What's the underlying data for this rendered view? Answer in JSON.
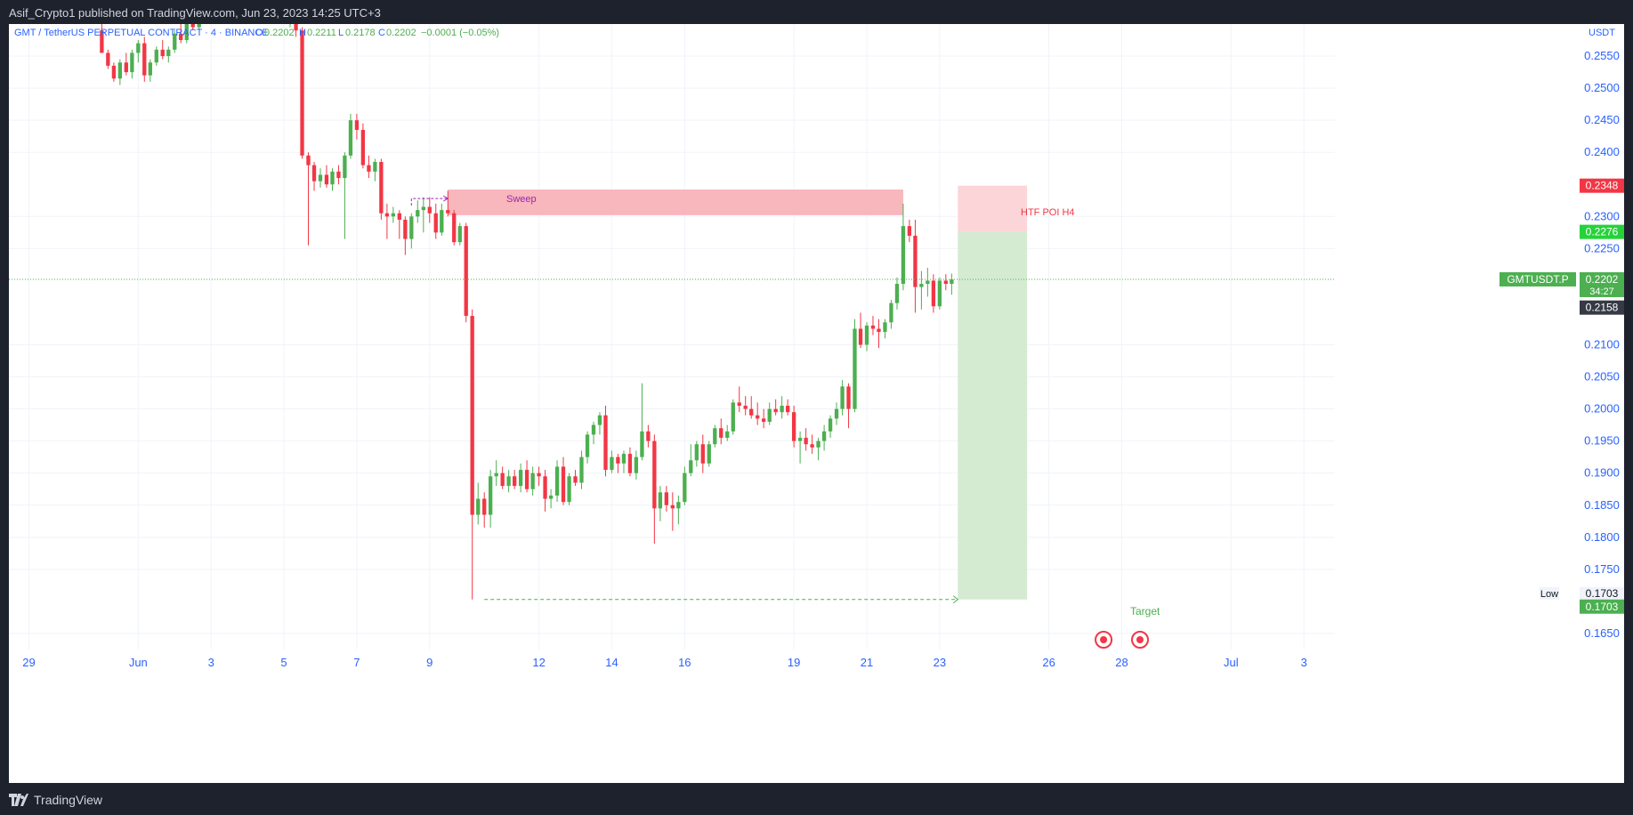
{
  "header": {
    "publisher_line": "Asif_Crypto1 published on TradingView.com, Jun 23, 2023 14:25 UTC+3"
  },
  "footer": {
    "brand": "TradingView"
  },
  "legend": {
    "symbol": "GMT / TetherUS PERPETUAL CONTRACT · 4 · BINANCE",
    "o_label": "O",
    "o_value": "0.2202",
    "h_label": "H",
    "h_value": "0.2211",
    "l_label": "L",
    "l_value": "0.2178",
    "c_label": "C",
    "c_value": "0.2202",
    "change": "−0.0001 (−0.05%)"
  },
  "colors": {
    "up": "#4caf50",
    "down": "#f23645",
    "axis_text": "#2962ff",
    "grid": "#f0f3fa",
    "poi_zone": "#f8b6bd",
    "stop_zone": "#fcd5d9",
    "target_zone": "#d4ebd2",
    "label_red": "#f23645",
    "label_green": "#22ab94",
    "label_bright_green": "#26d23a",
    "label_dark": "#363a45",
    "sweep": "#9c27b0"
  },
  "chart_data": {
    "type": "candlestick",
    "timeframe": "4",
    "currency_label": "USDT",
    "y_ticks": [
      "0.2550",
      "0.2500",
      "0.2450",
      "0.2400",
      "0.2300",
      "0.2250",
      "0.2100",
      "0.2050",
      "0.2000",
      "0.1950",
      "0.1900",
      "0.1850",
      "0.1800",
      "0.1750",
      "0.1650"
    ],
    "y_range": [
      0.1625,
      0.26
    ],
    "x_ticks": [
      {
        "label": "29",
        "day": -2
      },
      {
        "label": "Jun",
        "day": 1
      },
      {
        "label": "3",
        "day": 3
      },
      {
        "label": "5",
        "day": 5
      },
      {
        "label": "7",
        "day": 7
      },
      {
        "label": "9",
        "day": 9
      },
      {
        "label": "12",
        "day": 12
      },
      {
        "label": "14",
        "day": 14
      },
      {
        "label": "16",
        "day": 16
      },
      {
        "label": "19",
        "day": 19
      },
      {
        "label": "21",
        "day": 21
      },
      {
        "label": "23",
        "day": 23
      },
      {
        "label": "26",
        "day": 26
      },
      {
        "label": "28",
        "day": 28
      },
      {
        "label": "Jul",
        "day": 31
      },
      {
        "label": "3",
        "day": 33
      }
    ],
    "x_range_days": [
      -2.55,
      33.85
    ],
    "price_labels": [
      {
        "text": "0.2348",
        "price": 0.2348,
        "style": "red"
      },
      {
        "text": "0.2276",
        "price": 0.2276,
        "style": "bright_green"
      },
      {
        "text": "0.2202",
        "price": 0.2202,
        "style": "green",
        "symbol": "GMTUSDT.P",
        "countdown": "34:27"
      },
      {
        "text": "0.2158",
        "price": 0.2158,
        "style": "dark"
      },
      {
        "text": "0.1703",
        "price": 0.1703,
        "style": "plain",
        "prefix": "Low"
      },
      {
        "text": "0.1703",
        "price": 0.1703,
        "style": "green"
      }
    ],
    "current_price": 0.2202,
    "annotations": {
      "sweep_label": "Sweep",
      "poi_label": "HTF POI H4",
      "target_label": "Target",
      "poi_zone": {
        "from_day": 9.5,
        "to_day": 22.0,
        "top": 0.2342,
        "bottom": 0.2302
      },
      "trade": {
        "from_day": 23.5,
        "to_day": 25.4,
        "stop": 0.2348,
        "entry": 0.2276,
        "target": 0.1703
      },
      "low_line": {
        "from_day": 10.5,
        "to_day": 23.5,
        "price": 0.1703
      },
      "sweep_line": {
        "from_day": 8.5,
        "to_day": 9.5,
        "price": 0.2328
      }
    },
    "events": [
      {
        "day": 27.5
      },
      {
        "day": 28.5
      }
    ],
    "candles": [
      [
        0.0,
        0.259,
        0.261,
        0.256,
        0.2555
      ],
      [
        0.17,
        0.2555,
        0.256,
        0.253,
        0.2535
      ],
      [
        0.33,
        0.2535,
        0.254,
        0.251,
        0.2515
      ],
      [
        0.5,
        0.2515,
        0.2545,
        0.2505,
        0.254
      ],
      [
        0.67,
        0.254,
        0.2555,
        0.252,
        0.2525
      ],
      [
        0.83,
        0.2525,
        0.256,
        0.2515,
        0.2555
      ],
      [
        1.0,
        0.2555,
        0.2575,
        0.254,
        0.257
      ],
      [
        1.17,
        0.257,
        0.258,
        0.251,
        0.252
      ],
      [
        1.33,
        0.252,
        0.2545,
        0.251,
        0.254
      ],
      [
        1.5,
        0.254,
        0.2565,
        0.2535,
        0.256
      ],
      [
        1.67,
        0.256,
        0.2575,
        0.2545,
        0.255
      ],
      [
        1.83,
        0.255,
        0.2565,
        0.254,
        0.256
      ],
      [
        2.0,
        0.256,
        0.259,
        0.2555,
        0.2585
      ],
      [
        2.17,
        0.2585,
        0.26,
        0.257,
        0.2575
      ],
      [
        2.33,
        0.2575,
        0.261,
        0.257,
        0.2605
      ],
      [
        2.5,
        0.2605,
        0.2615,
        0.259,
        0.2595
      ],
      [
        2.67,
        0.2595,
        0.262,
        0.259,
        0.261
      ],
      [
        2.83,
        0.261,
        0.2625,
        0.26,
        0.2615
      ],
      [
        5.0,
        0.2615,
        0.2625,
        0.26,
        0.2605
      ],
      [
        5.17,
        0.2605,
        0.262,
        0.2595,
        0.261
      ],
      [
        5.33,
        0.261,
        0.262,
        0.258,
        0.259
      ],
      [
        5.5,
        0.259,
        0.2595,
        0.239,
        0.2395
      ],
      [
        5.67,
        0.2395,
        0.24,
        0.2255,
        0.238
      ],
      [
        5.83,
        0.238,
        0.2385,
        0.234,
        0.2355
      ],
      [
        6.0,
        0.2355,
        0.2375,
        0.2345,
        0.2365
      ],
      [
        6.17,
        0.2365,
        0.238,
        0.2345,
        0.235
      ],
      [
        6.33,
        0.235,
        0.2375,
        0.234,
        0.237
      ],
      [
        6.5,
        0.237,
        0.238,
        0.235,
        0.236
      ],
      [
        6.67,
        0.236,
        0.24,
        0.2265,
        0.2395
      ],
      [
        6.83,
        0.2395,
        0.246,
        0.239,
        0.245
      ],
      [
        7.0,
        0.245,
        0.246,
        0.242,
        0.2435
      ],
      [
        7.17,
        0.2435,
        0.2445,
        0.2375,
        0.238
      ],
      [
        7.33,
        0.238,
        0.2395,
        0.236,
        0.237
      ],
      [
        7.5,
        0.237,
        0.239,
        0.2355,
        0.2385
      ],
      [
        7.67,
        0.2385,
        0.239,
        0.2295,
        0.2305
      ],
      [
        7.83,
        0.2305,
        0.232,
        0.2265,
        0.23
      ],
      [
        8.0,
        0.23,
        0.2315,
        0.229,
        0.2305
      ],
      [
        8.17,
        0.2305,
        0.231,
        0.2265,
        0.2295
      ],
      [
        8.33,
        0.2295,
        0.23,
        0.224,
        0.2265
      ],
      [
        8.5,
        0.2265,
        0.2305,
        0.225,
        0.23
      ],
      [
        8.67,
        0.23,
        0.2325,
        0.229,
        0.231
      ],
      [
        8.83,
        0.231,
        0.233,
        0.2275,
        0.2315
      ],
      [
        9.0,
        0.2315,
        0.233,
        0.229,
        0.2305
      ],
      [
        9.17,
        0.2305,
        0.232,
        0.2265,
        0.2275
      ],
      [
        9.33,
        0.2275,
        0.232,
        0.227,
        0.231
      ],
      [
        9.5,
        0.231,
        0.234,
        0.23,
        0.2305
      ],
      [
        9.67,
        0.2305,
        0.231,
        0.2255,
        0.226
      ],
      [
        9.83,
        0.226,
        0.229,
        0.2255,
        0.2285
      ],
      [
        10.0,
        0.2285,
        0.229,
        0.2135,
        0.2145
      ],
      [
        10.17,
        0.2145,
        0.2155,
        0.1703,
        0.1835
      ],
      [
        10.33,
        0.1835,
        0.1885,
        0.182,
        0.186
      ],
      [
        10.5,
        0.186,
        0.187,
        0.1815,
        0.1835
      ],
      [
        10.67,
        0.1835,
        0.1905,
        0.1815,
        0.1895
      ],
      [
        10.83,
        0.1895,
        0.192,
        0.188,
        0.19
      ],
      [
        11.0,
        0.19,
        0.191,
        0.1875,
        0.188
      ],
      [
        11.17,
        0.188,
        0.1905,
        0.187,
        0.1895
      ],
      [
        11.33,
        0.1895,
        0.1905,
        0.1875,
        0.188
      ],
      [
        11.5,
        0.188,
        0.1915,
        0.187,
        0.1905
      ],
      [
        11.67,
        0.1905,
        0.192,
        0.187,
        0.1875
      ],
      [
        11.83,
        0.1875,
        0.191,
        0.1865,
        0.19
      ],
      [
        12.0,
        0.19,
        0.191,
        0.188,
        0.1895
      ],
      [
        12.17,
        0.1895,
        0.1905,
        0.184,
        0.186
      ],
      [
        12.33,
        0.186,
        0.1875,
        0.1845,
        0.1865
      ],
      [
        12.5,
        0.1865,
        0.192,
        0.1855,
        0.191
      ],
      [
        12.67,
        0.191,
        0.1925,
        0.185,
        0.1855
      ],
      [
        12.83,
        0.1855,
        0.19,
        0.185,
        0.1895
      ],
      [
        13.0,
        0.1895,
        0.1905,
        0.188,
        0.1885
      ],
      [
        13.17,
        0.1885,
        0.1935,
        0.1875,
        0.1925
      ],
      [
        13.33,
        0.1925,
        0.1965,
        0.1915,
        0.196
      ],
      [
        13.5,
        0.196,
        0.198,
        0.1945,
        0.1975
      ],
      [
        13.67,
        0.1975,
        0.1995,
        0.196,
        0.199
      ],
      [
        13.83,
        0.199,
        0.2005,
        0.1895,
        0.1905
      ],
      [
        14.0,
        0.1905,
        0.1935,
        0.19,
        0.1925
      ],
      [
        14.17,
        0.1925,
        0.193,
        0.19,
        0.1915
      ],
      [
        14.33,
        0.1915,
        0.1935,
        0.19,
        0.193
      ],
      [
        14.5,
        0.193,
        0.194,
        0.1895,
        0.19
      ],
      [
        14.67,
        0.19,
        0.1935,
        0.189,
        0.1925
      ],
      [
        14.83,
        0.1925,
        0.204,
        0.192,
        0.1965
      ],
      [
        15.0,
        0.1965,
        0.1975,
        0.194,
        0.195
      ],
      [
        15.17,
        0.195,
        0.196,
        0.179,
        0.1845
      ],
      [
        15.33,
        0.1845,
        0.188,
        0.1825,
        0.187
      ],
      [
        15.5,
        0.187,
        0.188,
        0.184,
        0.185
      ],
      [
        15.67,
        0.185,
        0.187,
        0.181,
        0.1845
      ],
      [
        15.83,
        0.1845,
        0.1865,
        0.182,
        0.1855
      ],
      [
        16.0,
        0.1855,
        0.191,
        0.185,
        0.19
      ],
      [
        16.17,
        0.19,
        0.1945,
        0.1895,
        0.192
      ],
      [
        16.33,
        0.192,
        0.195,
        0.191,
        0.1945
      ],
      [
        16.5,
        0.1945,
        0.196,
        0.19,
        0.1915
      ],
      [
        16.67,
        0.1915,
        0.195,
        0.191,
        0.1945
      ],
      [
        16.83,
        0.1945,
        0.1975,
        0.194,
        0.197
      ],
      [
        17.0,
        0.197,
        0.1985,
        0.1945,
        0.1955
      ],
      [
        17.17,
        0.1955,
        0.1975,
        0.195,
        0.1965
      ],
      [
        17.33,
        0.1965,
        0.2015,
        0.196,
        0.201
      ],
      [
        17.5,
        0.201,
        0.2035,
        0.1995,
        0.2005
      ],
      [
        17.67,
        0.2005,
        0.202,
        0.199,
        0.2
      ],
      [
        17.83,
        0.2,
        0.202,
        0.1985,
        0.199
      ],
      [
        18.0,
        0.199,
        0.201,
        0.1975,
        0.1985
      ],
      [
        18.17,
        0.1985,
        0.2,
        0.197,
        0.198
      ],
      [
        18.33,
        0.198,
        0.201,
        0.1975,
        0.2
      ],
      [
        18.5,
        0.2,
        0.2015,
        0.199,
        0.1995
      ],
      [
        18.67,
        0.1995,
        0.202,
        0.1985,
        0.2005
      ],
      [
        18.83,
        0.2005,
        0.2015,
        0.199,
        0.1995
      ],
      [
        19.0,
        0.1995,
        0.2005,
        0.194,
        0.195
      ],
      [
        19.17,
        0.195,
        0.1965,
        0.1915,
        0.1955
      ],
      [
        19.33,
        0.1955,
        0.197,
        0.1935,
        0.1945
      ],
      [
        19.5,
        0.1945,
        0.196,
        0.193,
        0.194
      ],
      [
        19.67,
        0.194,
        0.1955,
        0.192,
        0.195
      ],
      [
        19.83,
        0.195,
        0.1975,
        0.1935,
        0.1965
      ],
      [
        20.0,
        0.1965,
        0.199,
        0.1955,
        0.1985
      ],
      [
        20.17,
        0.1985,
        0.201,
        0.1975,
        0.2
      ],
      [
        20.33,
        0.2,
        0.2045,
        0.199,
        0.2035
      ],
      [
        20.5,
        0.2035,
        0.204,
        0.197,
        0.2
      ],
      [
        20.67,
        0.2,
        0.214,
        0.1995,
        0.2125
      ],
      [
        20.83,
        0.2125,
        0.215,
        0.2095,
        0.21
      ],
      [
        21.0,
        0.21,
        0.2135,
        0.209,
        0.213
      ],
      [
        21.17,
        0.213,
        0.2145,
        0.2115,
        0.2125
      ],
      [
        21.33,
        0.2125,
        0.214,
        0.2095,
        0.212
      ],
      [
        21.5,
        0.212,
        0.214,
        0.211,
        0.2135
      ],
      [
        21.67,
        0.2135,
        0.217,
        0.2125,
        0.2165
      ],
      [
        21.83,
        0.2165,
        0.2205,
        0.2155,
        0.2195
      ],
      [
        22.0,
        0.2195,
        0.232,
        0.2185,
        0.2285
      ],
      [
        22.17,
        0.2285,
        0.2295,
        0.226,
        0.227
      ],
      [
        22.33,
        0.227,
        0.2295,
        0.215,
        0.219
      ],
      [
        22.5,
        0.219,
        0.2215,
        0.2155,
        0.2195
      ],
      [
        22.67,
        0.2195,
        0.222,
        0.2175,
        0.22
      ],
      [
        22.83,
        0.22,
        0.221,
        0.215,
        0.216
      ],
      [
        23.0,
        0.216,
        0.2205,
        0.2155,
        0.22
      ],
      [
        23.17,
        0.22,
        0.221,
        0.2185,
        0.2195
      ],
      [
        23.33,
        0.2195,
        0.2211,
        0.2178,
        0.2202
      ]
    ]
  }
}
